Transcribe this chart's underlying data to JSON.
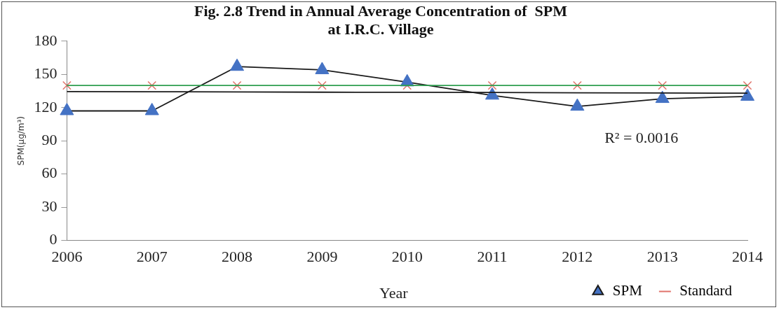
{
  "chart_data": {
    "type": "line",
    "title": "Fig. 2.8 Trend in Annual Average Concentration of  SPM\nat I.R.C. Village",
    "xlabel": "Year",
    "ylabel": "SPM(µg/m³)",
    "x": [
      2006,
      2007,
      2008,
      2009,
      2010,
      2011,
      2012,
      2013,
      2014
    ],
    "xlim": [
      2006,
      2014
    ],
    "xticks": [
      2006,
      2007,
      2008,
      2009,
      2010,
      2011,
      2012,
      2013,
      2014
    ],
    "ylim": [
      0,
      180
    ],
    "yticks": [
      0,
      30,
      60,
      90,
      120,
      150,
      180
    ],
    "series": [
      {
        "name": "SPM",
        "type": "line",
        "marker": "triangle",
        "color": "#4472c4",
        "values": [
          117,
          117,
          157,
          154,
          143,
          131,
          121,
          128,
          130
        ]
      },
      {
        "name": "Standard",
        "type": "scatter",
        "marker": "cross",
        "color": "#e0736a",
        "values": [
          140,
          140,
          140,
          140,
          140,
          140,
          140,
          140,
          140
        ]
      },
      {
        "type": "line",
        "marker": "none",
        "color": "#1a1a1a",
        "values": [
          134.5,
          134.3,
          134.1,
          133.9,
          133.8,
          133.6,
          133.4,
          133.2,
          133
        ]
      },
      {
        "type": "line",
        "marker": "none",
        "color": "#2e9e4f",
        "values": [
          140,
          140,
          140,
          140,
          140,
          140,
          140,
          140,
          140
        ]
      }
    ],
    "annotations": [
      "R² = 0.0016"
    ],
    "legend": "bottom right",
    "grid": false
  }
}
